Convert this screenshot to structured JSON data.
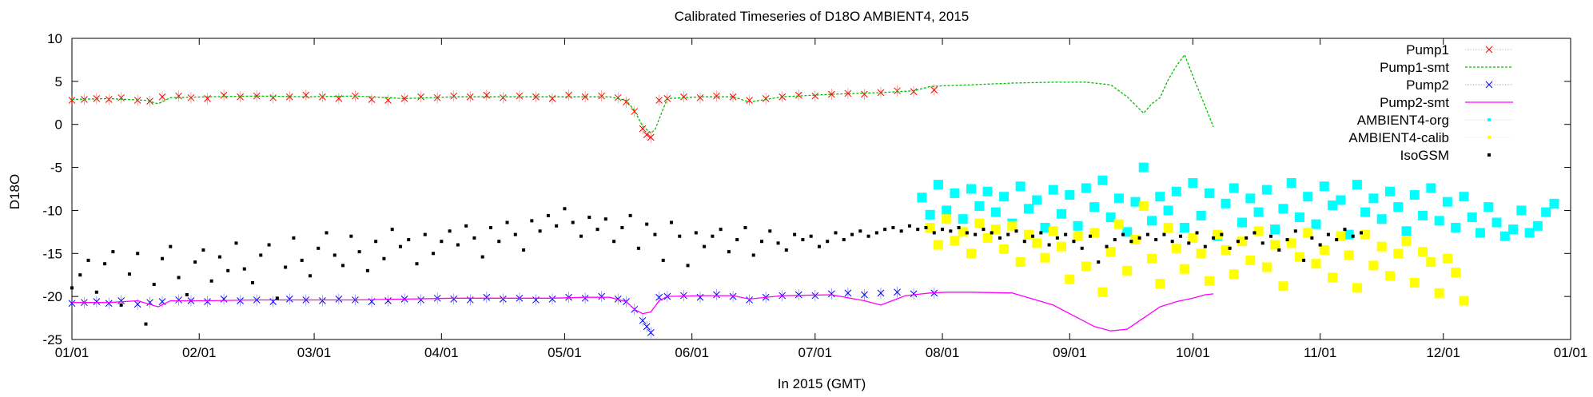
{
  "chart_data": {
    "type": "scatter",
    "title": "Calibrated Timeseries of D18O AMBIENT4, 2015",
    "xlabel": "In 2015 (GMT)",
    "ylabel": "D18O",
    "ylim": [
      -25,
      10
    ],
    "xlim_day_of_year": [
      1,
      366
    ],
    "x_tick_labels": [
      "01/01",
      "02/01",
      "03/01",
      "04/01",
      "05/01",
      "06/01",
      "07/01",
      "08/01",
      "09/01",
      "10/01",
      "11/01",
      "12/01",
      "01/01"
    ],
    "x_ticks_day_of_year": [
      1,
      32,
      60,
      91,
      121,
      152,
      182,
      213,
      244,
      274,
      305,
      335,
      366
    ],
    "y_ticks": [
      10,
      5,
      0,
      -5,
      -10,
      -15,
      -20,
      -25
    ],
    "legend_position": "top-right",
    "grid": false,
    "series": [
      {
        "name": "Pump1",
        "marker": "x",
        "color": "#ff0000",
        "errorbars": true,
        "x": [
          1,
          4,
          7,
          10,
          13,
          17,
          20,
          23,
          27,
          30,
          34,
          38,
          42,
          46,
          50,
          54,
          58,
          62,
          66,
          70,
          74,
          78,
          82,
          86,
          90,
          94,
          98,
          102,
          106,
          110,
          114,
          118,
          122,
          126,
          130,
          134,
          136,
          138,
          140,
          141,
          142,
          144,
          146,
          150,
          154,
          158,
          162,
          166,
          170,
          174,
          178,
          182,
          186,
          190,
          194,
          198,
          202,
          206,
          211
        ],
        "y": [
          2.8,
          2.9,
          3.0,
          2.9,
          3.1,
          2.8,
          2.7,
          3.2,
          3.3,
          3.1,
          3.0,
          3.4,
          3.2,
          3.3,
          3.1,
          3.2,
          3.4,
          3.2,
          3.0,
          3.3,
          2.9,
          2.8,
          3.0,
          3.2,
          3.1,
          3.3,
          3.2,
          3.4,
          3.1,
          3.3,
          3.2,
          3.0,
          3.4,
          3.2,
          3.3,
          3.1,
          2.6,
          1.5,
          -0.5,
          -1.2,
          -1.5,
          2.8,
          3.0,
          3.2,
          3.1,
          3.3,
          3.2,
          2.8,
          3.0,
          3.2,
          3.4,
          3.3,
          3.5,
          3.6,
          3.5,
          3.7,
          3.9,
          3.8,
          4.0
        ]
      },
      {
        "name": "Pump1-smt",
        "marker": "line",
        "color": "#00c000",
        "dashed": true,
        "x": [
          1,
          10,
          19,
          22,
          25,
          34,
          46,
          58,
          70,
          82,
          94,
          106,
          118,
          126,
          132,
          136,
          138,
          140,
          142,
          143,
          146,
          154,
          162,
          166,
          174,
          186,
          198,
          206,
          210,
          214,
          220,
          230,
          240,
          248,
          254,
          258,
          262,
          264,
          266,
          268,
          270,
          272,
          274,
          277,
          279
        ],
        "y": [
          2.9,
          3.0,
          2.8,
          2.4,
          3.1,
          3.2,
          3.3,
          3.2,
          3.3,
          3.0,
          3.2,
          3.2,
          3.2,
          3.2,
          3.2,
          2.8,
          1.6,
          -0.2,
          -1.0,
          -0.6,
          3.0,
          3.2,
          3.2,
          2.6,
          3.2,
          3.5,
          3.7,
          3.9,
          4.4,
          4.5,
          4.6,
          4.8,
          4.9,
          4.9,
          4.6,
          3.2,
          1.3,
          2.4,
          3.1,
          5.2,
          6.8,
          8.1,
          5.6,
          2.1,
          -0.3
        ]
      },
      {
        "name": "Pump2",
        "marker": "x",
        "color": "#0000ff",
        "errorbars": true,
        "x": [
          1,
          4,
          7,
          10,
          13,
          17,
          20,
          23,
          27,
          30,
          34,
          38,
          42,
          46,
          50,
          54,
          58,
          62,
          66,
          70,
          74,
          78,
          82,
          86,
          90,
          94,
          98,
          102,
          106,
          110,
          114,
          118,
          122,
          126,
          130,
          134,
          136,
          138,
          140,
          141,
          142,
          144,
          146,
          150,
          154,
          158,
          162,
          166,
          170,
          174,
          178,
          182,
          186,
          190,
          194,
          198,
          202,
          206,
          211
        ],
        "y": [
          -20.8,
          -20.7,
          -20.6,
          -20.8,
          -20.5,
          -20.9,
          -20.7,
          -20.6,
          -20.4,
          -20.5,
          -20.6,
          -20.3,
          -20.5,
          -20.4,
          -20.6,
          -20.3,
          -20.4,
          -20.5,
          -20.3,
          -20.4,
          -20.6,
          -20.5,
          -20.3,
          -20.4,
          -20.2,
          -20.3,
          -20.4,
          -20.1,
          -20.3,
          -20.2,
          -20.4,
          -20.3,
          -20.1,
          -20.2,
          -20.0,
          -20.3,
          -20.6,
          -21.5,
          -22.8,
          -23.5,
          -24.2,
          -20.1,
          -20.0,
          -19.9,
          -20.1,
          -19.8,
          -20.0,
          -20.4,
          -20.1,
          -19.9,
          -19.8,
          -19.9,
          -19.7,
          -19.6,
          -19.8,
          -19.6,
          -19.5,
          -19.7,
          -19.6
        ]
      },
      {
        "name": "Pump2-smt",
        "marker": "line",
        "color": "#ff00ff",
        "dashed": false,
        "x": [
          1,
          10,
          17,
          22,
          25,
          34,
          46,
          58,
          70,
          82,
          94,
          106,
          118,
          126,
          132,
          136,
          138,
          140,
          142,
          144,
          146,
          154,
          162,
          166,
          174,
          186,
          194,
          198,
          204,
          210,
          214,
          220,
          230,
          240,
          246,
          250,
          254,
          258,
          262,
          266,
          270,
          274,
          277,
          279
        ],
        "y": [
          -20.7,
          -20.7,
          -20.5,
          -21.2,
          -20.5,
          -20.5,
          -20.4,
          -20.4,
          -20.4,
          -20.3,
          -20.2,
          -20.2,
          -20.2,
          -20.1,
          -20.1,
          -20.6,
          -21.5,
          -22.0,
          -21.8,
          -20.5,
          -20.0,
          -19.9,
          -19.9,
          -20.3,
          -19.9,
          -19.8,
          -20.5,
          -21.0,
          -19.9,
          -19.6,
          -19.5,
          -19.5,
          -19.6,
          -21.0,
          -22.5,
          -23.5,
          -24.0,
          -23.8,
          -22.5,
          -21.2,
          -20.6,
          -20.2,
          -19.8,
          -19.7
        ]
      },
      {
        "name": "AMBIENT4-org",
        "marker": "dot",
        "color": "#00ffff",
        "x": [
          208,
          210,
          212,
          214,
          216,
          218,
          220,
          222,
          224,
          226,
          228,
          230,
          232,
          234,
          236,
          238,
          240,
          242,
          244,
          246,
          248,
          250,
          252,
          254,
          256,
          258,
          260,
          262,
          264,
          266,
          268,
          270,
          272,
          274,
          276,
          278,
          280,
          282,
          284,
          286,
          288,
          290,
          292,
          294,
          296,
          298,
          300,
          302,
          304,
          306,
          308,
          310,
          312,
          314,
          316,
          318,
          320,
          322,
          324,
          326,
          328,
          330,
          332,
          334,
          336,
          338,
          340,
          342,
          344,
          346,
          348,
          350,
          352,
          354,
          356,
          358,
          360,
          362
        ],
        "y": [
          -8.5,
          -10.5,
          -7.0,
          -10.0,
          -8.0,
          -11.0,
          -7.5,
          -9.5,
          -7.8,
          -10.2,
          -8.4,
          -11.5,
          -7.2,
          -9.8,
          -8.8,
          -12.0,
          -7.6,
          -10.4,
          -8.2,
          -11.8,
          -7.4,
          -9.6,
          -6.5,
          -10.8,
          -8.6,
          -12.5,
          -9.0,
          -5.0,
          -11.2,
          -8.4,
          -10.0,
          -7.8,
          -12.0,
          -6.8,
          -10.6,
          -8.0,
          -13.0,
          -9.2,
          -7.4,
          -11.4,
          -8.6,
          -10.2,
          -7.6,
          -12.2,
          -9.8,
          -6.8,
          -10.8,
          -8.4,
          -11.6,
          -7.2,
          -9.4,
          -8.8,
          -12.8,
          -7.0,
          -10.2,
          -8.6,
          -11.0,
          -7.8,
          -9.6,
          -12.4,
          -8.2,
          -10.6,
          -7.4,
          -11.2,
          -9.0,
          -12.0,
          -8.4,
          -10.8,
          -12.6,
          -9.6,
          -11.4,
          -13.0,
          -12.2,
          -10.0,
          -12.6,
          -11.8,
          -10.2,
          -9.2
        ]
      },
      {
        "name": "AMBIENT4-calib",
        "marker": "dot",
        "color": "#ffff00",
        "x": [
          210,
          212,
          214,
          216,
          218,
          220,
          222,
          224,
          226,
          228,
          230,
          232,
          234,
          236,
          238,
          240,
          242,
          244,
          246,
          248,
          250,
          252,
          254,
          256,
          258,
          260,
          262,
          264,
          266,
          268,
          270,
          272,
          274,
          276,
          278,
          280,
          282,
          284,
          286,
          288,
          290,
          292,
          294,
          296,
          298,
          300,
          302,
          304,
          306,
          308,
          310,
          312,
          314,
          316,
          318,
          320,
          322,
          324,
          326,
          328,
          330,
          332,
          334,
          336,
          338,
          340
        ],
        "y": [
          -12.0,
          -14.0,
          -11.0,
          -13.5,
          -12.5,
          -15.0,
          -11.5,
          -13.2,
          -12.2,
          -14.5,
          -11.8,
          -16.0,
          -12.8,
          -13.8,
          -15.5,
          -12.4,
          -14.2,
          -18.0,
          -13.0,
          -16.5,
          -12.6,
          -19.5,
          -14.8,
          -11.6,
          -17.0,
          -13.4,
          -9.5,
          -15.6,
          -18.5,
          -12.0,
          -14.4,
          -16.8,
          -13.2,
          -15.0,
          -18.2,
          -12.8,
          -14.6,
          -17.4,
          -13.6,
          -15.8,
          -12.4,
          -16.6,
          -14.0,
          -18.8,
          -13.8,
          -15.4,
          -12.6,
          -16.2,
          -14.6,
          -17.8,
          -13.0,
          -15.2,
          -19.0,
          -12.8,
          -16.4,
          -14.2,
          -17.6,
          -15.0,
          -13.6,
          -18.4,
          -14.8,
          -16.0,
          -19.6,
          -15.6,
          -17.2,
          -20.5
        ]
      },
      {
        "name": "IsoGSM",
        "marker": "square",
        "color": "#000000",
        "x": [
          1,
          3,
          5,
          7,
          9,
          11,
          13,
          15,
          17,
          19,
          21,
          23,
          25,
          27,
          29,
          31,
          33,
          35,
          37,
          39,
          41,
          43,
          45,
          47,
          49,
          51,
          53,
          55,
          57,
          59,
          61,
          63,
          65,
          67,
          69,
          71,
          73,
          75,
          77,
          79,
          81,
          83,
          85,
          87,
          89,
          91,
          93,
          95,
          97,
          99,
          101,
          103,
          105,
          107,
          109,
          111,
          113,
          115,
          117,
          119,
          121,
          123,
          125,
          127,
          129,
          131,
          133,
          135,
          137,
          139,
          141,
          143,
          145,
          147,
          149,
          151,
          153,
          155,
          157,
          159,
          161,
          163,
          165,
          167,
          169,
          171,
          173,
          175,
          177,
          179,
          181,
          183,
          185,
          187,
          189,
          191,
          193,
          195,
          197,
          199,
          201,
          203,
          205,
          207,
          209,
          211,
          213,
          215,
          217,
          219,
          221,
          223,
          225,
          227,
          229,
          231,
          233,
          235,
          237,
          239,
          241,
          243,
          245,
          247,
          249,
          251,
          253,
          255,
          257,
          259,
          261,
          263,
          265,
          267,
          269,
          271,
          273,
          275,
          277,
          279,
          281,
          283,
          285,
          287,
          289,
          291,
          293,
          295,
          297,
          299,
          301,
          303,
          305,
          307,
          309,
          311,
          313,
          315
        ],
        "y": [
          -19.0,
          -17.5,
          -15.8,
          -19.5,
          -16.2,
          -14.8,
          -21.0,
          -17.4,
          -15.0,
          -23.2,
          -18.6,
          -15.6,
          -14.2,
          -17.8,
          -19.8,
          -16.0,
          -14.6,
          -18.2,
          -15.4,
          -17.0,
          -13.8,
          -16.8,
          -18.4,
          -15.2,
          -14.0,
          -20.2,
          -16.6,
          -13.2,
          -15.8,
          -17.6,
          -14.4,
          -12.6,
          -15.2,
          -16.4,
          -13.0,
          -14.8,
          -17.0,
          -13.6,
          -15.6,
          -12.2,
          -14.2,
          -13.4,
          -16.2,
          -12.8,
          -15.0,
          -13.6,
          -12.4,
          -14.0,
          -11.8,
          -13.2,
          -15.4,
          -12.0,
          -13.6,
          -11.4,
          -12.8,
          -14.6,
          -11.2,
          -12.4,
          -10.6,
          -11.8,
          -9.8,
          -11.4,
          -13.0,
          -10.8,
          -12.2,
          -11.0,
          -13.6,
          -12.0,
          -10.6,
          -14.4,
          -11.6,
          -12.8,
          -15.8,
          -11.4,
          -13.0,
          -16.4,
          -12.6,
          -14.2,
          -13.0,
          -12.2,
          -14.8,
          -13.4,
          -12.0,
          -15.2,
          -13.6,
          -12.4,
          -13.8,
          -14.6,
          -12.8,
          -13.4,
          -13.0,
          -14.2,
          -13.6,
          -12.6,
          -13.4,
          -12.8,
          -12.4,
          -13.0,
          -12.6,
          -12.2,
          -12.0,
          -12.4,
          -11.8,
          -12.2,
          -12.0,
          -12.6,
          -12.2,
          -12.4,
          -12.0,
          -12.6,
          -12.8,
          -12.2,
          -12.6,
          -13.2,
          -12.8,
          -12.4,
          -13.6,
          -13.0,
          -12.6,
          -14.0,
          -13.2,
          -12.8,
          -13.6,
          -14.4,
          -13.0,
          -16.0,
          -14.2,
          -13.4,
          -12.8,
          -13.6,
          -13.2,
          -12.8,
          -13.4,
          -12.8,
          -13.6,
          -13.0,
          -13.8,
          -12.6,
          -14.2,
          -13.2,
          -12.8,
          -14.4,
          -13.6,
          -13.2,
          -12.6,
          -13.8,
          -13.0,
          -14.6,
          -13.4,
          -12.4,
          -15.8,
          -13.2,
          -14.0,
          -12.8,
          -13.4,
          -12.2,
          -13.0,
          -12.6
        ]
      }
    ]
  }
}
